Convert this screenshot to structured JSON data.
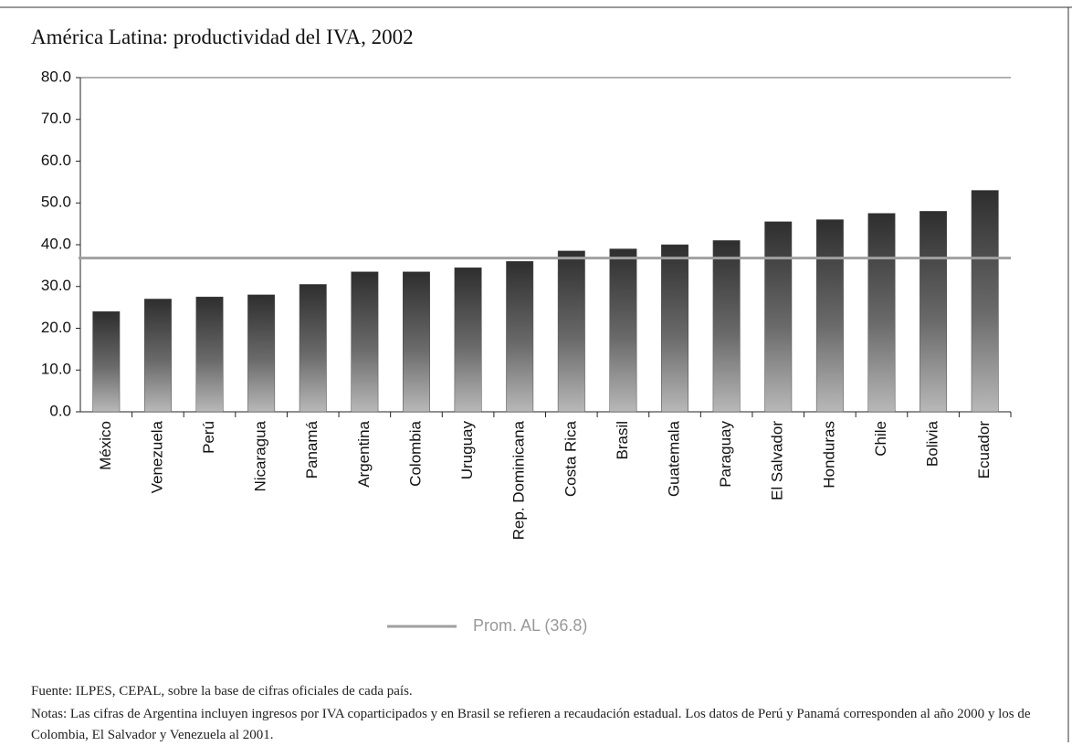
{
  "chart_data": {
    "type": "bar",
    "title": "América Latina: productividad del IVA, 2002",
    "categories": [
      "México",
      "Venezuela",
      "Perú",
      "Nicaragua",
      "Panamá",
      "Argentina",
      "Colombia",
      "Uruguay",
      "Rep. Dominicana",
      "Costa Rica",
      "Brasil",
      "Guatemala",
      "Paraguay",
      "El Salvador",
      "Honduras",
      "Chile",
      "Bolivia",
      "Ecuador"
    ],
    "values": [
      24,
      27,
      27.5,
      28,
      30.5,
      33.5,
      33.5,
      34.5,
      36,
      38.5,
      39,
      40,
      41,
      45.5,
      46,
      47.5,
      48,
      53
    ],
    "color": "#4a4a4a",
    "reference_line": {
      "name": "Prom. AL (36.8)",
      "value": 36.8,
      "color": "#a0a0a0"
    },
    "ylim": [
      0,
      80
    ],
    "yticks": [
      {
        "value": 0,
        "label": "0.0"
      },
      {
        "value": 10,
        "label": "10.0"
      },
      {
        "value": 20,
        "label": "20.0"
      },
      {
        "value": 30,
        "label": "30.0"
      },
      {
        "value": 40,
        "label": "40.0"
      },
      {
        "value": 50,
        "label": "50.0"
      },
      {
        "value": 60,
        "label": "60.0"
      },
      {
        "value": 70,
        "label": "70.0"
      },
      {
        "value": 80,
        "label": "80.0"
      }
    ],
    "source": "Fuente: ILPES, CEPAL, sobre la base de cifras oficiales de cada país.",
    "notes": "Notas: Las cifras de Argentina incluyen ingresos por IVA coparticipados y en Brasil se refieren a recaudación estadual. Los datos de Perú y Panamá corresponden al año 2000 y los de Colombia, El Salvador y Venezuela al 2001."
  }
}
